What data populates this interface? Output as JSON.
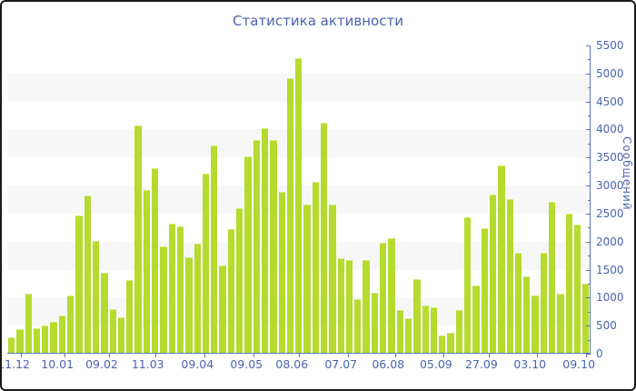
{
  "frame": {
    "border_color": "#1a1a1a",
    "background": "#ffffff"
  },
  "chart_data": {
    "type": "bar",
    "title": "Статистика активности",
    "ylabel": "Сообщений",
    "xlabel": "",
    "ylim": [
      0,
      5500
    ],
    "y_major_step": 500,
    "y_minor_step": 250,
    "y_axis_side": "right",
    "grid": "alternating horizontal stripes every 500 units",
    "legend_position": "none",
    "n_bars": 69,
    "values": [
      280,
      420,
      1050,
      440,
      480,
      550,
      660,
      1030,
      2450,
      2800,
      2000,
      1430,
      780,
      630,
      1300,
      4050,
      2900,
      3300,
      1900,
      2300,
      2250,
      1700,
      1950,
      3200,
      3700,
      1550,
      2200,
      2580,
      3500,
      3800,
      4000,
      3800,
      2870,
      4900,
      5250,
      2650,
      3050,
      4100,
      2650,
      1680,
      1650,
      960,
      1650,
      1070,
      1960,
      2050,
      760,
      610,
      1320,
      850,
      810,
      310,
      360,
      770,
      2420,
      1200,
      2220,
      2820,
      3350,
      2750,
      1780,
      1370,
      1030,
      1780,
      2700,
      1050,
      2480,
      2280,
      1230
    ],
    "x_tick_labels": [
      {
        "label": "11.12",
        "pct": 1.1
      },
      {
        "label": "10.01",
        "pct": 8.6
      },
      {
        "label": "09.02",
        "pct": 16.2
      },
      {
        "label": "11.03",
        "pct": 24.1
      },
      {
        "label": "09.04",
        "pct": 32.6
      },
      {
        "label": "09.05",
        "pct": 41.0
      },
      {
        "label": "08.06",
        "pct": 48.8
      },
      {
        "label": "07.07",
        "pct": 57.2
      },
      {
        "label": "06.08",
        "pct": 65.3
      },
      {
        "label": "05.09",
        "pct": 73.5
      },
      {
        "label": "27.09",
        "pct": 81.3
      },
      {
        "label": "03.10",
        "pct": 89.6
      },
      {
        "label": "09.10",
        "pct": 98.0
      }
    ],
    "colors": {
      "bar": "#b5db2f",
      "bar_top_edge": "#d2ea77",
      "axis_line": "#5b74b8",
      "tick_text": "#4a66ad",
      "title_text": "#4a62ad",
      "stripe": "#f7f7f8"
    }
  }
}
